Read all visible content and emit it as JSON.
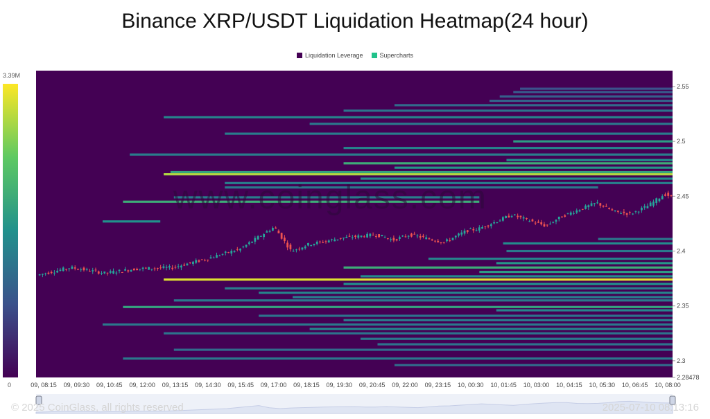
{
  "chart_data": {
    "type": "heatmap",
    "title": "Binance XRP/USDT Liquidation Heatmap(24 hour)",
    "legend": [
      {
        "label": "Liquidation Leverage",
        "color": "#440154"
      },
      {
        "label": "Supercharts",
        "color": "#21c28a"
      }
    ],
    "colorscale": {
      "max_label": "3.39M",
      "min_label": "0"
    },
    "y_ticks": [
      "2.55",
      "2.5",
      "2.45",
      "2.4",
      "2.35",
      "2.3",
      "2.28478"
    ],
    "y_tick_values": [
      2.55,
      2.5,
      2.45,
      2.4,
      2.35,
      2.3,
      2.28478
    ],
    "ylim": [
      2.28478,
      2.5645
    ],
    "x_ticks": [
      "09, 08:15",
      "09, 09:30",
      "09, 10:45",
      "09, 12:00",
      "09, 13:15",
      "09, 14:30",
      "09, 15:45",
      "09, 17:00",
      "09, 18:15",
      "09, 19:30",
      "09, 20:45",
      "09, 22:00",
      "09, 23:15",
      "10, 00:30",
      "10, 01:45",
      "10, 03:00",
      "10, 04:15",
      "10, 05:30",
      "10, 06:45",
      "10, 08:00"
    ],
    "price_path": [
      [
        0,
        2.378
      ],
      [
        1,
        2.385
      ],
      [
        2,
        2.38
      ],
      [
        3,
        2.384
      ],
      [
        4,
        2.385
      ],
      [
        5,
        2.393
      ],
      [
        6,
        2.402
      ],
      [
        7,
        2.422
      ],
      [
        7.5,
        2.4
      ],
      [
        8,
        2.406
      ],
      [
        9,
        2.412
      ],
      [
        10,
        2.415
      ],
      [
        10.5,
        2.41
      ],
      [
        11,
        2.415
      ],
      [
        12,
        2.408
      ],
      [
        12.7,
        2.419
      ],
      [
        13,
        2.42
      ],
      [
        14,
        2.433
      ],
      [
        14.5,
        2.428
      ],
      [
        15,
        2.423
      ],
      [
        15.5,
        2.432
      ],
      [
        16.5,
        2.444
      ],
      [
        17,
        2.436
      ],
      [
        17.5,
        2.434
      ],
      [
        18,
        2.441
      ],
      [
        18.5,
        2.452
      ],
      [
        19,
        2.446
      ],
      [
        19.5,
        2.44
      ],
      [
        20,
        2.438
      ]
    ],
    "liquidation_bands": [
      {
        "price": 2.548,
        "start": 14.2,
        "end": 20,
        "intensity": 0.25
      },
      {
        "price": 2.545,
        "start": 14.0,
        "end": 20,
        "intensity": 0.28
      },
      {
        "price": 2.541,
        "start": 13.6,
        "end": 20,
        "intensity": 0.3
      },
      {
        "price": 2.537,
        "start": 13.3,
        "end": 20,
        "intensity": 0.32
      },
      {
        "price": 2.533,
        "start": 10.5,
        "end": 20,
        "intensity": 0.35
      },
      {
        "price": 2.528,
        "start": 9.0,
        "end": 20,
        "intensity": 0.38
      },
      {
        "price": 2.522,
        "start": 3.7,
        "end": 20,
        "intensity": 0.45
      },
      {
        "price": 2.516,
        "start": 8.0,
        "end": 20,
        "intensity": 0.4
      },
      {
        "price": 2.507,
        "start": 5.5,
        "end": 20,
        "intensity": 0.42
      },
      {
        "price": 2.5,
        "start": 14.0,
        "end": 20,
        "intensity": 0.55
      },
      {
        "price": 2.494,
        "start": 9.0,
        "end": 20,
        "intensity": 0.45
      },
      {
        "price": 2.488,
        "start": 2.7,
        "end": 20,
        "intensity": 0.42
      },
      {
        "price": 2.483,
        "start": 13.8,
        "end": 20,
        "intensity": 0.5
      },
      {
        "price": 2.48,
        "start": 9.0,
        "end": 20,
        "intensity": 0.62
      },
      {
        "price": 2.476,
        "start": 10.5,
        "end": 20,
        "intensity": 0.52
      },
      {
        "price": 2.472,
        "start": 3.9,
        "end": 20,
        "intensity": 0.58
      },
      {
        "price": 2.47,
        "start": 3.7,
        "end": 20,
        "intensity": 0.88
      },
      {
        "price": 2.466,
        "start": 9.5,
        "end": 20,
        "intensity": 0.48
      },
      {
        "price": 2.462,
        "start": 5.5,
        "end": 20,
        "intensity": 0.42
      },
      {
        "price": 2.458,
        "start": 5.5,
        "end": 16.5,
        "intensity": 0.4
      },
      {
        "price": 2.449,
        "start": 4.0,
        "end": 13.0,
        "intensity": 0.42
      },
      {
        "price": 2.445,
        "start": 2.5,
        "end": 13.0,
        "intensity": 0.62
      },
      {
        "price": 2.427,
        "start": 1.9,
        "end": 3.6,
        "intensity": 0.5
      },
      {
        "price": 2.411,
        "start": 16.5,
        "end": 20,
        "intensity": 0.4
      },
      {
        "price": 2.407,
        "start": 13.7,
        "end": 20,
        "intensity": 0.48
      },
      {
        "price": 2.4,
        "start": 13.8,
        "end": 20,
        "intensity": 0.4
      },
      {
        "price": 2.393,
        "start": 11.5,
        "end": 20,
        "intensity": 0.45
      },
      {
        "price": 2.389,
        "start": 13.5,
        "end": 20,
        "intensity": 0.52
      },
      {
        "price": 2.385,
        "start": 9.0,
        "end": 20,
        "intensity": 0.62
      },
      {
        "price": 2.381,
        "start": 13.0,
        "end": 20,
        "intensity": 0.55
      },
      {
        "price": 2.377,
        "start": 9.5,
        "end": 20,
        "intensity": 0.48
      },
      {
        "price": 2.374,
        "start": 3.7,
        "end": 20,
        "intensity": 0.95
      },
      {
        "price": 2.37,
        "start": 9.0,
        "end": 20,
        "intensity": 0.5
      },
      {
        "price": 2.366,
        "start": 5.5,
        "end": 20,
        "intensity": 0.42
      },
      {
        "price": 2.362,
        "start": 6.5,
        "end": 20,
        "intensity": 0.45
      },
      {
        "price": 2.358,
        "start": 7.5,
        "end": 20,
        "intensity": 0.42
      },
      {
        "price": 2.355,
        "start": 4.0,
        "end": 20,
        "intensity": 0.4
      },
      {
        "price": 2.349,
        "start": 2.5,
        "end": 20,
        "intensity": 0.58
      },
      {
        "price": 2.346,
        "start": 13.5,
        "end": 20,
        "intensity": 0.45
      },
      {
        "price": 2.341,
        "start": 6.5,
        "end": 20,
        "intensity": 0.38
      },
      {
        "price": 2.337,
        "start": 9.0,
        "end": 20,
        "intensity": 0.42
      },
      {
        "price": 2.333,
        "start": 1.9,
        "end": 20,
        "intensity": 0.4
      },
      {
        "price": 2.329,
        "start": 8.0,
        "end": 20,
        "intensity": 0.45
      },
      {
        "price": 2.325,
        "start": 3.7,
        "end": 20,
        "intensity": 0.38
      },
      {
        "price": 2.32,
        "start": 9.5,
        "end": 20,
        "intensity": 0.4
      },
      {
        "price": 2.315,
        "start": 10.0,
        "end": 20,
        "intensity": 0.38
      },
      {
        "price": 2.31,
        "start": 4.0,
        "end": 20,
        "intensity": 0.35
      },
      {
        "price": 2.302,
        "start": 2.5,
        "end": 20,
        "intensity": 0.4
      },
      {
        "price": 2.296,
        "start": 10.5,
        "end": 20,
        "intensity": 0.35
      }
    ]
  },
  "watermark": "www.coinglass.com",
  "footer": {
    "copyright": "© 2025 CoinGlass, all rights reserved",
    "timestamp": "2025-07-10 08:13:16"
  }
}
